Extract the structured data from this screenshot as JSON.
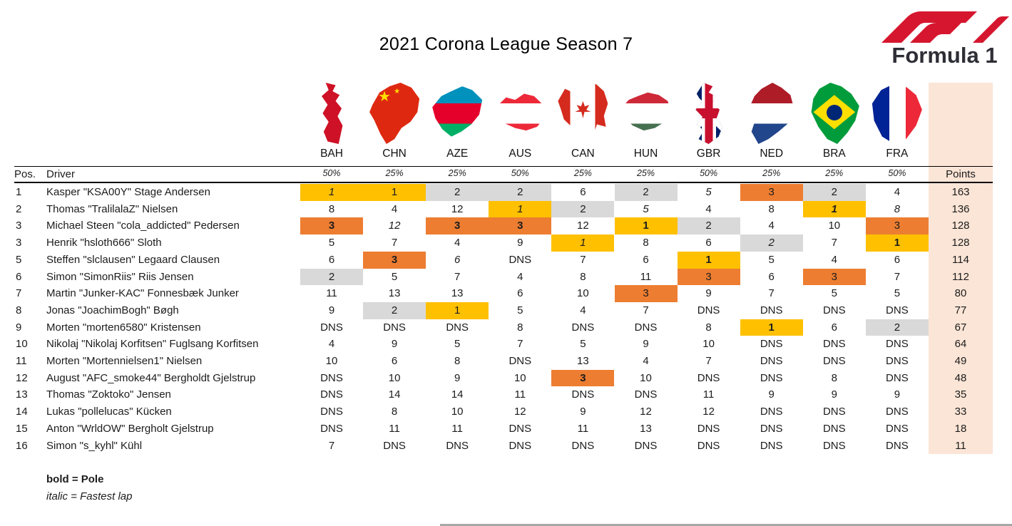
{
  "title": "2021 Corona League Season 7",
  "logo": {
    "wordmark": "Formula 1",
    "accent": "#D6162E",
    "text_color": "#2e2e36"
  },
  "colors": {
    "first": "#FFC000",
    "second": "#D9D9D9",
    "third": "#ED7D31",
    "points_bg": "#FBE5D6"
  },
  "legend": {
    "bold": "bold = Pole",
    "italic": "italic = Fastest lap"
  },
  "table": {
    "pos_header": "Pos.",
    "driver_header": "Driver",
    "points_header": "Points",
    "races": [
      {
        "code": "BAH",
        "weight": "50%",
        "flag": "bahrain"
      },
      {
        "code": "CHN",
        "weight": "25%",
        "flag": "china"
      },
      {
        "code": "AZE",
        "weight": "25%",
        "flag": "azerbaijan"
      },
      {
        "code": "AUS",
        "weight": "50%",
        "flag": "austria"
      },
      {
        "code": "CAN",
        "weight": "25%",
        "flag": "canada"
      },
      {
        "code": "HUN",
        "weight": "25%",
        "flag": "hungary"
      },
      {
        "code": "GBR",
        "weight": "50%",
        "flag": "gbr"
      },
      {
        "code": "NED",
        "weight": "25%",
        "flag": "netherlands"
      },
      {
        "code": "BRA",
        "weight": "25%",
        "flag": "brazil"
      },
      {
        "code": "FRA",
        "weight": "50%",
        "flag": "france"
      }
    ],
    "rows": [
      {
        "pos": "1",
        "driver": "Kasper \"KSA00Y\" Stage Andersen",
        "points": "163",
        "results": [
          {
            "v": "1",
            "f": true
          },
          {
            "v": "1"
          },
          {
            "v": "2"
          },
          {
            "v": "2"
          },
          {
            "v": "6"
          },
          {
            "v": "2"
          },
          {
            "v": "5",
            "f": true
          },
          {
            "v": "3"
          },
          {
            "v": "2"
          },
          {
            "v": "4"
          }
        ]
      },
      {
        "pos": "2",
        "driver": "Thomas \"TralilalaZ\" Nielsen",
        "points": "136",
        "results": [
          {
            "v": "8"
          },
          {
            "v": "4"
          },
          {
            "v": "12"
          },
          {
            "v": "1",
            "f": true
          },
          {
            "v": "2"
          },
          {
            "v": "5",
            "f": true
          },
          {
            "v": "4"
          },
          {
            "v": "8"
          },
          {
            "v": "1",
            "p": true,
            "f": true
          },
          {
            "v": "8",
            "f": true
          }
        ]
      },
      {
        "pos": "3",
        "driver": "Michael Steen \"cola_addicted\" Pedersen",
        "points": "128",
        "results": [
          {
            "v": "3",
            "p": true
          },
          {
            "v": "12",
            "f": true
          },
          {
            "v": "3",
            "p": true
          },
          {
            "v": "3",
            "p": true
          },
          {
            "v": "12"
          },
          {
            "v": "1",
            "p": true
          },
          {
            "v": "2"
          },
          {
            "v": "4"
          },
          {
            "v": "10"
          },
          {
            "v": "3"
          }
        ]
      },
      {
        "pos": "3",
        "driver": "Henrik \"hsloth666\" Sloth",
        "points": "128",
        "results": [
          {
            "v": "5"
          },
          {
            "v": "7"
          },
          {
            "v": "4"
          },
          {
            "v": "9"
          },
          {
            "v": "1",
            "f": true
          },
          {
            "v": "8"
          },
          {
            "v": "6"
          },
          {
            "v": "2",
            "f": true
          },
          {
            "v": "7"
          },
          {
            "v": "1",
            "p": true
          }
        ]
      },
      {
        "pos": "5",
        "driver": "Steffen \"slclausen\" Legaard Clausen",
        "points": "114",
        "results": [
          {
            "v": "6"
          },
          {
            "v": "3",
            "p": true
          },
          {
            "v": "6",
            "f": true
          },
          {
            "v": "DNS"
          },
          {
            "v": "7"
          },
          {
            "v": "6"
          },
          {
            "v": "1",
            "p": true
          },
          {
            "v": "5"
          },
          {
            "v": "4"
          },
          {
            "v": "6"
          }
        ]
      },
      {
        "pos": "6",
        "driver": "Simon \"SimonRiis\" Riis Jensen",
        "points": "112",
        "results": [
          {
            "v": "2"
          },
          {
            "v": "5"
          },
          {
            "v": "7"
          },
          {
            "v": "4"
          },
          {
            "v": "8"
          },
          {
            "v": "11"
          },
          {
            "v": "3"
          },
          {
            "v": "6"
          },
          {
            "v": "3"
          },
          {
            "v": "7"
          }
        ]
      },
      {
        "pos": "7",
        "driver": "Martin \"Junker-KAC\" Fonnesbæk Junker",
        "points": "80",
        "results": [
          {
            "v": "11"
          },
          {
            "v": "13"
          },
          {
            "v": "13"
          },
          {
            "v": "6"
          },
          {
            "v": "10"
          },
          {
            "v": "3"
          },
          {
            "v": "9"
          },
          {
            "v": "7"
          },
          {
            "v": "5"
          },
          {
            "v": "5"
          }
        ]
      },
      {
        "pos": "8",
        "driver": "Jonas \"JoachimBogh\" Bøgh",
        "points": "77",
        "results": [
          {
            "v": "9"
          },
          {
            "v": "2"
          },
          {
            "v": "1"
          },
          {
            "v": "5"
          },
          {
            "v": "4"
          },
          {
            "v": "7"
          },
          {
            "v": "DNS"
          },
          {
            "v": "DNS"
          },
          {
            "v": "DNS"
          },
          {
            "v": "DNS"
          }
        ]
      },
      {
        "pos": "9",
        "driver": "Morten \"morten6580\" Kristensen",
        "points": "67",
        "results": [
          {
            "v": "DNS"
          },
          {
            "v": "DNS"
          },
          {
            "v": "DNS"
          },
          {
            "v": "8"
          },
          {
            "v": "DNS"
          },
          {
            "v": "DNS"
          },
          {
            "v": "8"
          },
          {
            "v": "1",
            "p": true
          },
          {
            "v": "6"
          },
          {
            "v": "2"
          }
        ]
      },
      {
        "pos": "10",
        "driver": "Nikolaj \"Nikolaj Korfitsen\" Fuglsang Korfitsen",
        "points": "64",
        "results": [
          {
            "v": "4"
          },
          {
            "v": "9"
          },
          {
            "v": "5"
          },
          {
            "v": "7"
          },
          {
            "v": "5"
          },
          {
            "v": "9"
          },
          {
            "v": "10"
          },
          {
            "v": "DNS"
          },
          {
            "v": "DNS"
          },
          {
            "v": "DNS"
          }
        ]
      },
      {
        "pos": "11",
        "driver": "Morten \"Mortennielsen1\" Nielsen",
        "points": "49",
        "results": [
          {
            "v": "10"
          },
          {
            "v": "6"
          },
          {
            "v": "8"
          },
          {
            "v": "DNS"
          },
          {
            "v": "13"
          },
          {
            "v": "4"
          },
          {
            "v": "7"
          },
          {
            "v": "DNS"
          },
          {
            "v": "DNS"
          },
          {
            "v": "DNS"
          }
        ]
      },
      {
        "pos": "12",
        "driver": "August \"AFC_smoke44\" Bergholdt Gjelstrup",
        "points": "48",
        "results": [
          {
            "v": "DNS"
          },
          {
            "v": "10"
          },
          {
            "v": "9"
          },
          {
            "v": "10"
          },
          {
            "v": "3",
            "p": true
          },
          {
            "v": "10"
          },
          {
            "v": "DNS"
          },
          {
            "v": "DNS"
          },
          {
            "v": "8"
          },
          {
            "v": "DNS"
          }
        ]
      },
      {
        "pos": "13",
        "driver": "Thomas \"Zoktoko\" Jensen",
        "points": "35",
        "results": [
          {
            "v": "DNS"
          },
          {
            "v": "14"
          },
          {
            "v": "14"
          },
          {
            "v": "11"
          },
          {
            "v": "DNS"
          },
          {
            "v": "DNS"
          },
          {
            "v": "11"
          },
          {
            "v": "9"
          },
          {
            "v": "9"
          },
          {
            "v": "9"
          }
        ]
      },
      {
        "pos": "14",
        "driver": "Lukas \"pollelucas\" Kücken",
        "points": "33",
        "results": [
          {
            "v": "DNS"
          },
          {
            "v": "8"
          },
          {
            "v": "10"
          },
          {
            "v": "12"
          },
          {
            "v": "9"
          },
          {
            "v": "12"
          },
          {
            "v": "12"
          },
          {
            "v": "DNS"
          },
          {
            "v": "DNS"
          },
          {
            "v": "DNS"
          }
        ]
      },
      {
        "pos": "15",
        "driver": "Anton \"WrldOW\" Bergholt Gjelstrup",
        "points": "18",
        "results": [
          {
            "v": "DNS"
          },
          {
            "v": "11"
          },
          {
            "v": "11"
          },
          {
            "v": "DNS"
          },
          {
            "v": "11"
          },
          {
            "v": "13"
          },
          {
            "v": "DNS"
          },
          {
            "v": "DNS"
          },
          {
            "v": "DNS"
          },
          {
            "v": "DNS"
          }
        ]
      },
      {
        "pos": "16",
        "driver": "Simon \"s_kyhl\" Kühl",
        "points": "11",
        "results": [
          {
            "v": "7"
          },
          {
            "v": "DNS"
          },
          {
            "v": "DNS"
          },
          {
            "v": "DNS"
          },
          {
            "v": "DNS"
          },
          {
            "v": "DNS"
          },
          {
            "v": "DNS"
          },
          {
            "v": "DNS"
          },
          {
            "v": "DNS"
          },
          {
            "v": "DNS"
          }
        ]
      }
    ]
  }
}
